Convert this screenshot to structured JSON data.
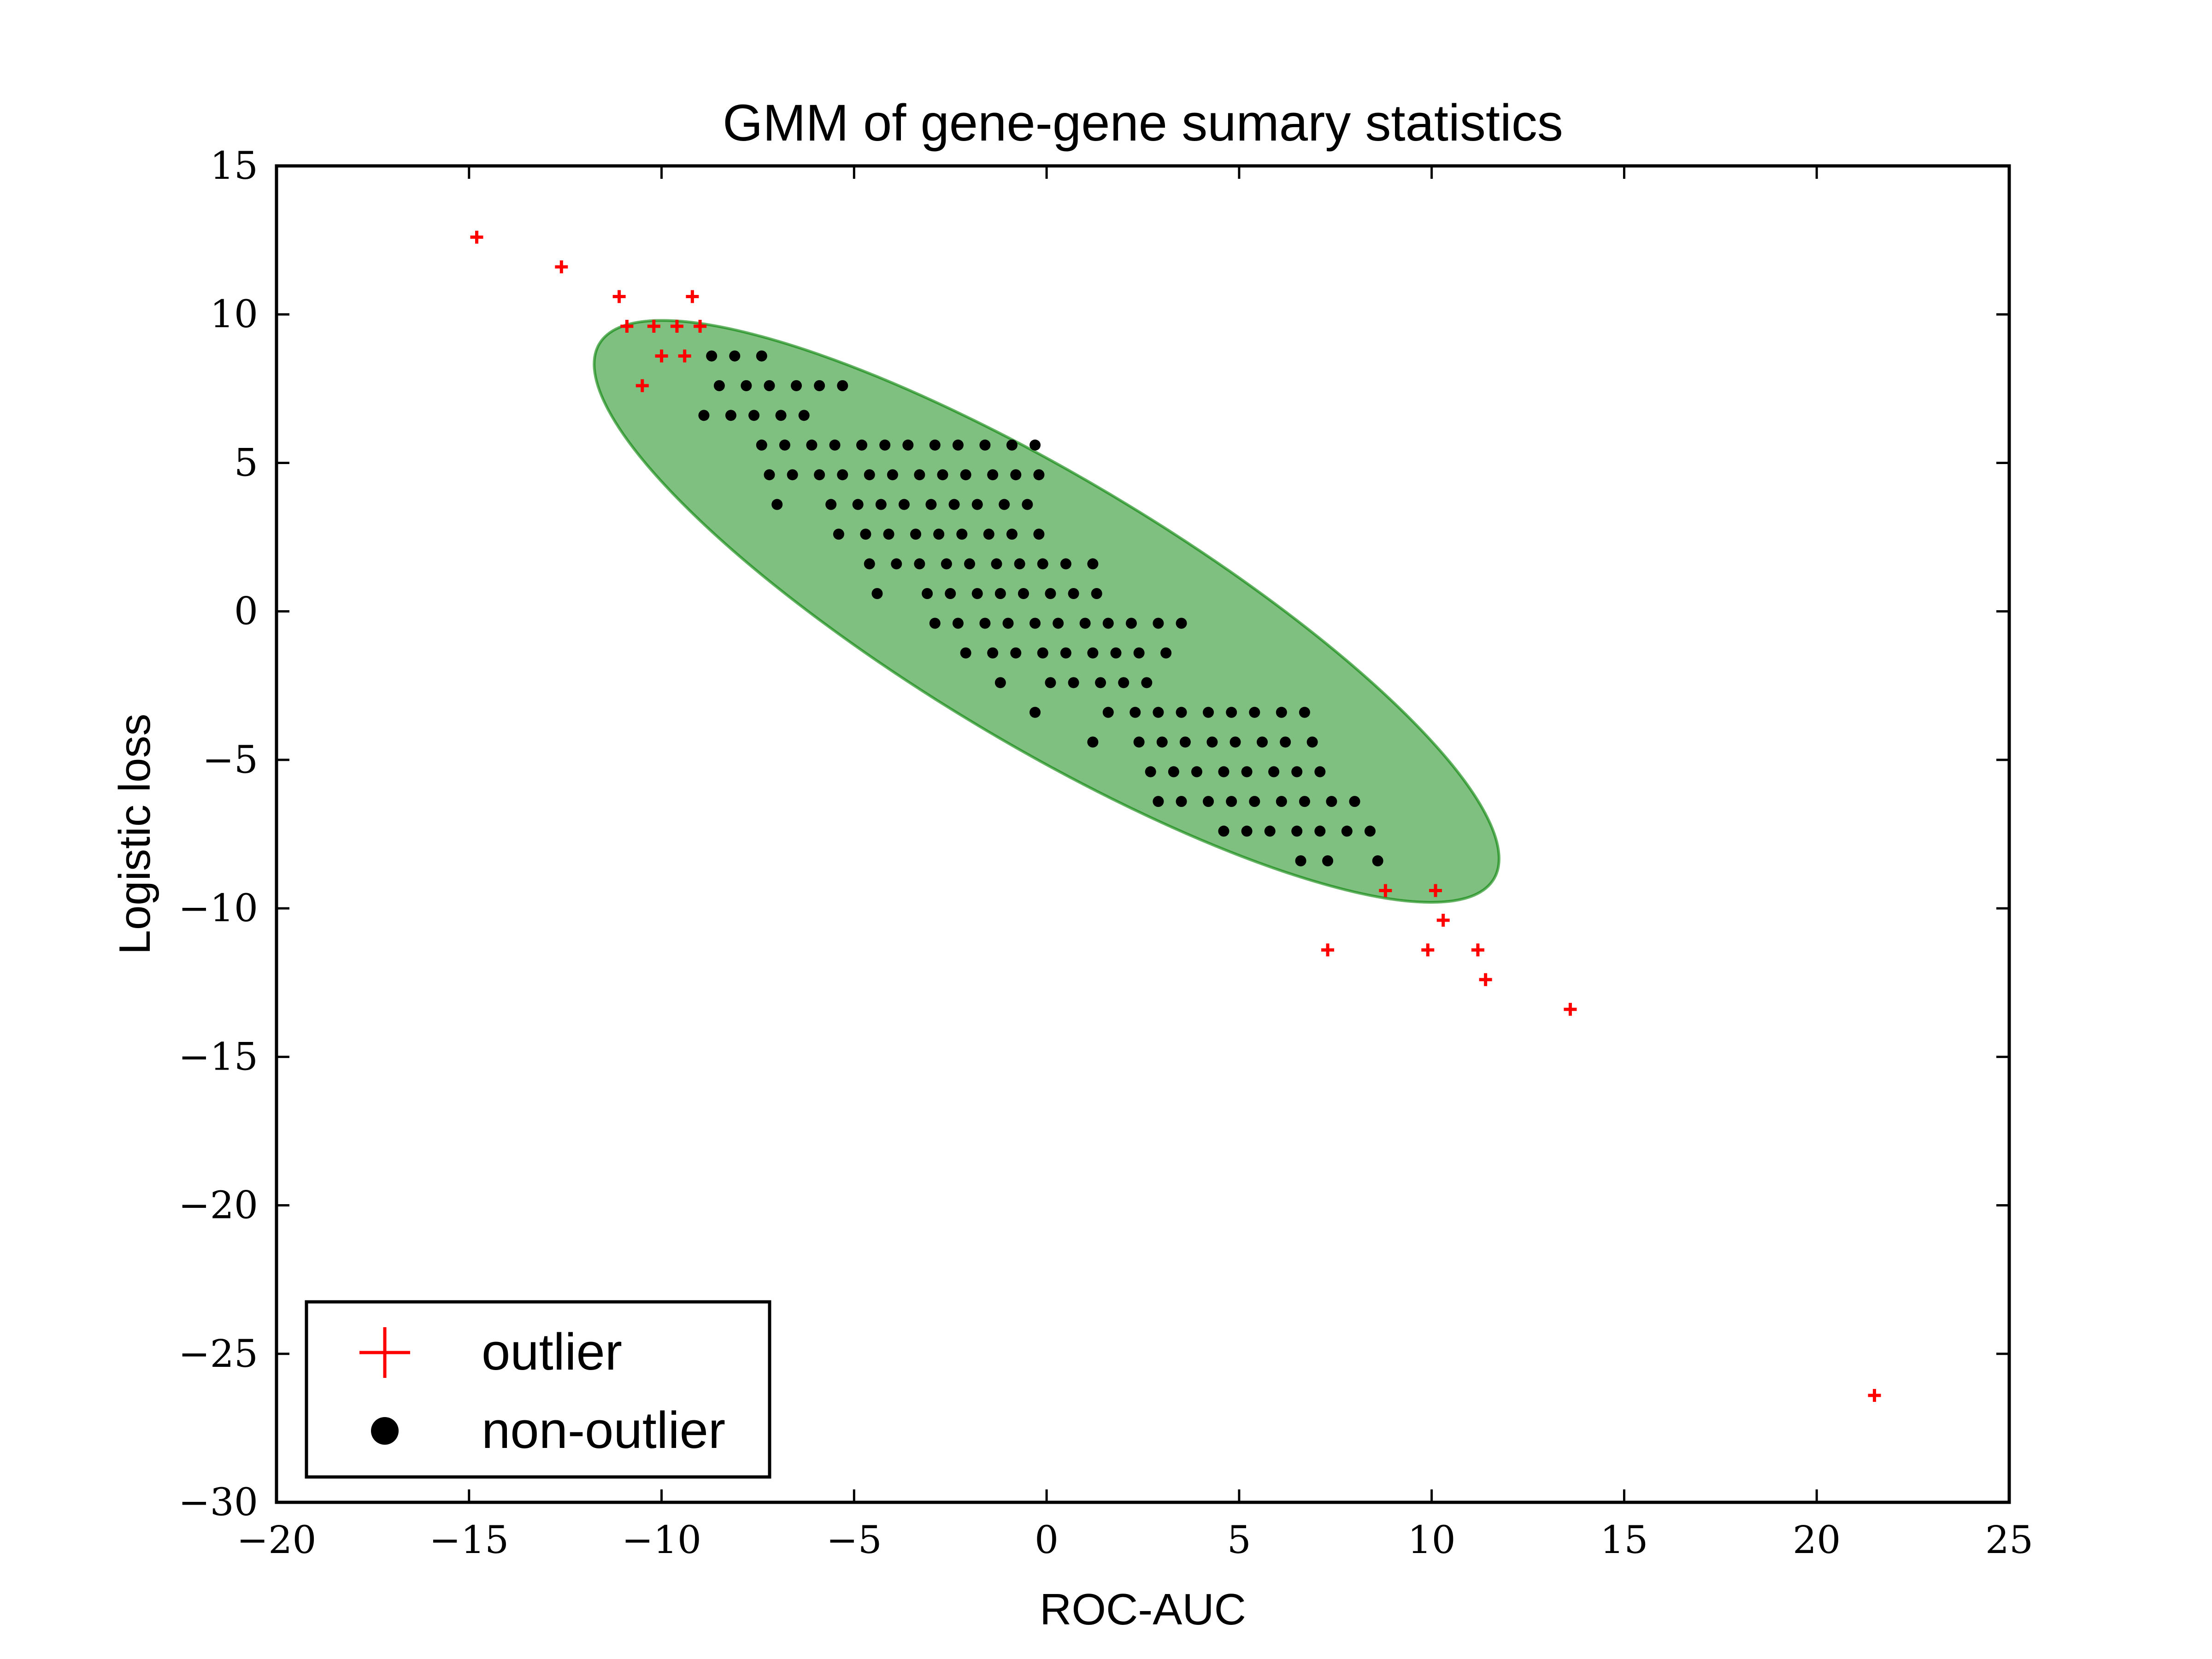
{
  "chart_data": {
    "type": "scatter",
    "title": "GMM of gene-gene sumary statistics",
    "xlabel": "ROC-AUC",
    "ylabel": "Logistic loss",
    "xlim": [
      -20,
      25
    ],
    "ylim": [
      -30,
      15
    ],
    "xticks": [
      -20,
      -15,
      -10,
      -5,
      0,
      5,
      10,
      15,
      20,
      25
    ],
    "yticks": [
      15,
      10,
      5,
      0,
      -5,
      -10,
      -15,
      -20,
      -25,
      -30
    ],
    "xtick_labels": [
      "−20",
      "−15",
      "−10",
      "−5",
      "0",
      "5",
      "10",
      "15",
      "20",
      "25"
    ],
    "ytick_labels": [
      "15",
      "10",
      "5",
      "0",
      "−5",
      "−10",
      "−15",
      "−20",
      "−25",
      "−30"
    ],
    "grid": false,
    "legend_position": "lower-left",
    "ellipse": {
      "center": [
        0,
        0
      ],
      "semi_major": 14.7,
      "semi_minor": 4.0,
      "angle_deg": -37.8,
      "color": "#008000",
      "opacity": 0.5
    },
    "series": [
      {
        "name": "outlier",
        "marker": "plus",
        "color": "#ff0000",
        "points": [
          [
            -14.8,
            12.6
          ],
          [
            -12.6,
            11.6
          ],
          [
            -11.1,
            10.6
          ],
          [
            -10.9,
            9.6
          ],
          [
            -10.5,
            7.6
          ],
          [
            -10.2,
            9.6
          ],
          [
            -10.0,
            8.6
          ],
          [
            -9.6,
            9.6
          ],
          [
            -9.4,
            8.6
          ],
          [
            -9.2,
            10.6
          ],
          [
            -9.0,
            9.6
          ],
          [
            7.3,
            -11.4
          ],
          [
            8.8,
            -9.4
          ],
          [
            9.9,
            -11.4
          ],
          [
            10.1,
            -9.4
          ],
          [
            10.3,
            -10.4
          ],
          [
            11.2,
            -11.4
          ],
          [
            11.4,
            -12.4
          ],
          [
            13.6,
            -13.4
          ],
          [
            21.5,
            -26.4
          ]
        ]
      },
      {
        "name": "non-outlier",
        "marker": "circle",
        "color": "#000000",
        "points": [
          [
            -8.7,
            8.6
          ],
          [
            -8.1,
            8.6
          ],
          [
            -7.4,
            8.6
          ],
          [
            -8.5,
            7.6
          ],
          [
            -7.8,
            7.6
          ],
          [
            -7.2,
            7.6
          ],
          [
            -6.5,
            7.6
          ],
          [
            -5.9,
            7.6
          ],
          [
            -5.3,
            7.6
          ],
          [
            -8.9,
            6.6
          ],
          [
            -8.2,
            6.6
          ],
          [
            -7.6,
            6.6
          ],
          [
            -6.9,
            6.6
          ],
          [
            -6.3,
            6.6
          ],
          [
            -7.4,
            5.6
          ],
          [
            -6.8,
            5.6
          ],
          [
            -6.1,
            5.6
          ],
          [
            -5.5,
            5.6
          ],
          [
            -4.8,
            5.6
          ],
          [
            -4.2,
            5.6
          ],
          [
            -3.6,
            5.6
          ],
          [
            -2.9,
            5.6
          ],
          [
            -2.3,
            5.6
          ],
          [
            -1.6,
            5.6
          ],
          [
            -0.9,
            5.6
          ],
          [
            -0.3,
            5.6
          ],
          [
            -7.2,
            4.6
          ],
          [
            -6.6,
            4.6
          ],
          [
            -5.9,
            4.6
          ],
          [
            -5.3,
            4.6
          ],
          [
            -4.6,
            4.6
          ],
          [
            -4.0,
            4.6
          ],
          [
            -3.3,
            4.6
          ],
          [
            -2.7,
            4.6
          ],
          [
            -2.1,
            4.6
          ],
          [
            -1.4,
            4.6
          ],
          [
            -0.8,
            4.6
          ],
          [
            -0.2,
            4.6
          ],
          [
            -7.0,
            3.6
          ],
          [
            -5.6,
            3.6
          ],
          [
            -4.9,
            3.6
          ],
          [
            -4.3,
            3.6
          ],
          [
            -3.7,
            3.6
          ],
          [
            -3.0,
            3.6
          ],
          [
            -2.4,
            3.6
          ],
          [
            -1.8,
            3.6
          ],
          [
            -1.1,
            3.6
          ],
          [
            -0.5,
            3.6
          ],
          [
            -5.4,
            2.6
          ],
          [
            -4.7,
            2.6
          ],
          [
            -4.1,
            2.6
          ],
          [
            -3.4,
            2.6
          ],
          [
            -2.8,
            2.6
          ],
          [
            -2.2,
            2.6
          ],
          [
            -1.5,
            2.6
          ],
          [
            -0.9,
            2.6
          ],
          [
            -0.2,
            2.6
          ],
          [
            -4.6,
            1.6
          ],
          [
            -3.9,
            1.6
          ],
          [
            -3.3,
            1.6
          ],
          [
            -2.6,
            1.6
          ],
          [
            -2.0,
            1.6
          ],
          [
            -1.3,
            1.6
          ],
          [
            -0.7,
            1.6
          ],
          [
            -0.1,
            1.6
          ],
          [
            0.5,
            1.6
          ],
          [
            1.2,
            1.6
          ],
          [
            -4.4,
            0.6
          ],
          [
            -3.1,
            0.6
          ],
          [
            -2.5,
            0.6
          ],
          [
            -1.8,
            0.6
          ],
          [
            -1.2,
            0.6
          ],
          [
            -0.6,
            0.6
          ],
          [
            0.1,
            0.6
          ],
          [
            0.7,
            0.6
          ],
          [
            1.3,
            0.6
          ],
          [
            -2.9,
            -0.4
          ],
          [
            -2.3,
            -0.4
          ],
          [
            -1.6,
            -0.4
          ],
          [
            -1.0,
            -0.4
          ],
          [
            -0.3,
            -0.4
          ],
          [
            0.3,
            -0.4
          ],
          [
            1.0,
            -0.4
          ],
          [
            1.6,
            -0.4
          ],
          [
            2.2,
            -0.4
          ],
          [
            2.9,
            -0.4
          ],
          [
            3.5,
            -0.4
          ],
          [
            -2.1,
            -1.4
          ],
          [
            -1.4,
            -1.4
          ],
          [
            -0.8,
            -1.4
          ],
          [
            -0.1,
            -1.4
          ],
          [
            0.5,
            -1.4
          ],
          [
            1.2,
            -1.4
          ],
          [
            1.8,
            -1.4
          ],
          [
            2.4,
            -1.4
          ],
          [
            3.1,
            -1.4
          ],
          [
            -1.2,
            -2.4
          ],
          [
            0.1,
            -2.4
          ],
          [
            0.7,
            -2.4
          ],
          [
            1.4,
            -2.4
          ],
          [
            2.0,
            -2.4
          ],
          [
            2.6,
            -2.4
          ],
          [
            -0.3,
            -3.4
          ],
          [
            1.6,
            -3.4
          ],
          [
            2.3,
            -3.4
          ],
          [
            2.9,
            -3.4
          ],
          [
            3.5,
            -3.4
          ],
          [
            4.2,
            -3.4
          ],
          [
            4.8,
            -3.4
          ],
          [
            5.4,
            -3.4
          ],
          [
            6.1,
            -3.4
          ],
          [
            6.7,
            -3.4
          ],
          [
            1.2,
            -4.4
          ],
          [
            2.4,
            -4.4
          ],
          [
            3.0,
            -4.4
          ],
          [
            3.6,
            -4.4
          ],
          [
            4.3,
            -4.4
          ],
          [
            4.9,
            -4.4
          ],
          [
            5.6,
            -4.4
          ],
          [
            6.2,
            -4.4
          ],
          [
            6.9,
            -4.4
          ],
          [
            2.7,
            -5.4
          ],
          [
            3.3,
            -5.4
          ],
          [
            3.9,
            -5.4
          ],
          [
            4.6,
            -5.4
          ],
          [
            5.2,
            -5.4
          ],
          [
            5.9,
            -5.4
          ],
          [
            6.5,
            -5.4
          ],
          [
            7.1,
            -5.4
          ],
          [
            2.9,
            -6.4
          ],
          [
            3.5,
            -6.4
          ],
          [
            4.2,
            -6.4
          ],
          [
            4.8,
            -6.4
          ],
          [
            5.4,
            -6.4
          ],
          [
            6.1,
            -6.4
          ],
          [
            6.7,
            -6.4
          ],
          [
            7.4,
            -6.4
          ],
          [
            8.0,
            -6.4
          ],
          [
            4.6,
            -7.4
          ],
          [
            5.2,
            -7.4
          ],
          [
            5.8,
            -7.4
          ],
          [
            6.5,
            -7.4
          ],
          [
            7.1,
            -7.4
          ],
          [
            7.8,
            -7.4
          ],
          [
            8.4,
            -7.4
          ],
          [
            6.6,
            -8.4
          ],
          [
            7.3,
            -8.4
          ],
          [
            8.6,
            -8.4
          ]
        ]
      }
    ]
  }
}
